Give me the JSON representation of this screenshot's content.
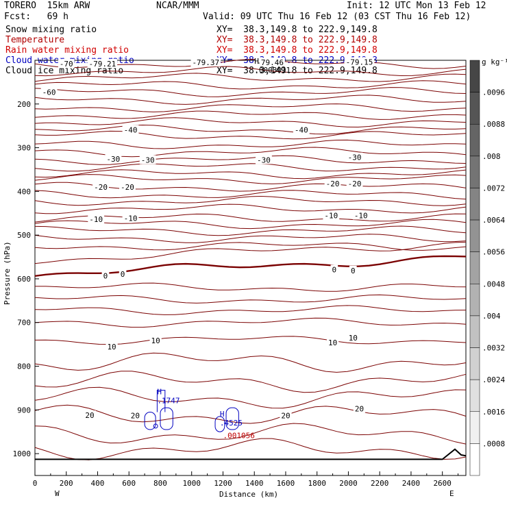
{
  "header": {
    "model": "TORERO  15km ARW",
    "org": "NCAR/MMM",
    "init": "Init: 12 UTC Mon 13 Feb 12",
    "fcst": "Fcst:   69 h",
    "valid": "Valid: 09 UTC Thu 16 Feb 12 (03 CST Thu 16 Feb 12)"
  },
  "fields": [
    {
      "name": "Snow mixing ratio",
      "xy": "XY=  38.3,149.8 to 222.9,149.8",
      "color": "#000000"
    },
    {
      "name": "Temperature",
      "xy": "XY=  38.3,149.8 to 222.9,149.8",
      "color": "#b00000"
    },
    {
      "name": "Rain water mixing ratio",
      "xy": "XY=  38.3,149.8 to 222.9,149.8",
      "color": "#d00000"
    },
    {
      "name": "Cloud water mixing ratio",
      "xy": "XY=  38.3,149.8 to 222.9,149.8",
      "color": "#0000c0"
    },
    {
      "name": "Cloud ice mixing ratio",
      "xy": "XY=  38.3,149.8 to 222.9,149.8",
      "color": "#000000"
    }
  ],
  "chart_data": {
    "type": "contour",
    "xlabel": "Distance (km)",
    "ylabel": "Pressure (hPa)",
    "xlim": [
      0,
      2750
    ],
    "ylim": [
      100,
      1050
    ],
    "x_ticks": [
      0,
      200,
      400,
      600,
      800,
      1000,
      1200,
      1400,
      1600,
      1800,
      2000,
      2200,
      2400,
      2600
    ],
    "y_ticks": [
      200,
      300,
      400,
      500,
      600,
      700,
      800,
      900,
      1000
    ],
    "endpoints": {
      "left": "W",
      "right": "E"
    },
    "colorbar": {
      "units": "g kg⁻¹",
      "labels": [
        ".0096",
        ".0088",
        ".008",
        ".0072",
        ".0064",
        ".0056",
        ".0048",
        ".004",
        ".0032",
        ".0024",
        ".0016",
        ".0008"
      ]
    },
    "temperature_labels": [
      {
        "t": "-70",
        "x": 200,
        "p": 108
      },
      {
        "t": "-79.21",
        "x": 430,
        "p": 108
      },
      {
        "t": "-79.37",
        "x": 1090,
        "p": 105
      },
      {
        "t": "-79.46",
        "x": 1500,
        "p": 105
      },
      {
        "t": "-79.15",
        "x": 2070,
        "p": 104
      },
      {
        "t": "-60",
        "x": 90,
        "p": 173
      },
      {
        "t": "-40",
        "x": 610,
        "p": 259
      },
      {
        "t": "-40",
        "x": 1700,
        "p": 259
      },
      {
        "t": "-30",
        "x": 500,
        "p": 326
      },
      {
        "t": "-30",
        "x": 720,
        "p": 328
      },
      {
        "t": "-30",
        "x": 1460,
        "p": 328
      },
      {
        "t": "-30",
        "x": 2040,
        "p": 322
      },
      {
        "t": "-20",
        "x": 420,
        "p": 390
      },
      {
        "t": "-20",
        "x": 590,
        "p": 390
      },
      {
        "t": "-20",
        "x": 1900,
        "p": 382
      },
      {
        "t": "-20",
        "x": 2040,
        "p": 382
      },
      {
        "t": "-10",
        "x": 390,
        "p": 464
      },
      {
        "t": "-10",
        "x": 610,
        "p": 461
      },
      {
        "t": "-10",
        "x": 1890,
        "p": 455
      },
      {
        "t": "-10",
        "x": 2080,
        "p": 455
      },
      {
        "t": "0",
        "x": 450,
        "p": 593
      },
      {
        "t": "0",
        "x": 560,
        "p": 589
      },
      {
        "t": "0",
        "x": 1910,
        "p": 579
      },
      {
        "t": "0",
        "x": 2030,
        "p": 581
      },
      {
        "t": "10",
        "x": 490,
        "p": 755
      },
      {
        "t": "10",
        "x": 770,
        "p": 741
      },
      {
        "t": "10",
        "x": 1900,
        "p": 746
      },
      {
        "t": "10",
        "x": 2030,
        "p": 735
      },
      {
        "t": "20",
        "x": 350,
        "p": 912
      },
      {
        "t": "20",
        "x": 640,
        "p": 913
      },
      {
        "t": "20",
        "x": 1600,
        "p": 913
      },
      {
        "t": "20",
        "x": 2070,
        "p": 897
      }
    ],
    "extrema": [
      {
        "kind": "H",
        "x": 780,
        "p": 878,
        "value": ".1747",
        "color": "#0000c0"
      },
      {
        "kind": "H",
        "x": 1180,
        "p": 929,
        "value": ".4525",
        "color": "#0000c0"
      },
      {
        "kind": "H",
        "x": 1400,
        "p": 122,
        "value": ".0003011",
        "color": "#000000"
      },
      {
        "kind": "",
        "x": 1200,
        "p": 958,
        "value": ".001056",
        "color": "#c00000"
      }
    ]
  }
}
